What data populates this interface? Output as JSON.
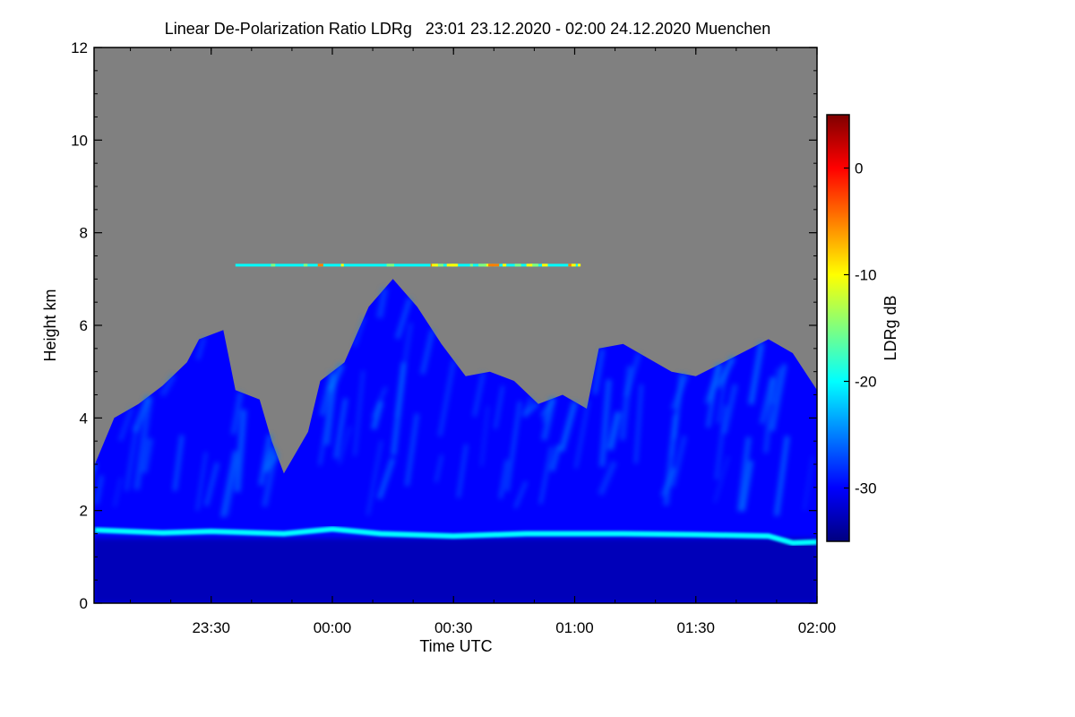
{
  "chart_data": {
    "type": "heatmap",
    "title": "Linear De-Polarization Ratio LDRg   23:01 23.12.2020 - 02:00 24.12.2020 Muenchen",
    "xlabel": "Time UTC",
    "ylabel": "Height km",
    "x_range_hours": [
      23.0167,
      26.0
    ],
    "y_range_km": [
      0,
      12
    ],
    "x_ticks": [
      {
        "value": 23.5,
        "label": "23:30"
      },
      {
        "value": 24.0,
        "label": "00:00"
      },
      {
        "value": 24.5,
        "label": "00:30"
      },
      {
        "value": 25.0,
        "label": "01:00"
      },
      {
        "value": 25.5,
        "label": "01:30"
      },
      {
        "value": 26.0,
        "label": "02:00"
      }
    ],
    "y_ticks": [
      {
        "value": 0,
        "label": "0"
      },
      {
        "value": 2,
        "label": "2"
      },
      {
        "value": 4,
        "label": "4"
      },
      {
        "value": 6,
        "label": "6"
      },
      {
        "value": 8,
        "label": "8"
      },
      {
        "value": 10,
        "label": "10"
      },
      {
        "value": 12,
        "label": "12"
      }
    ],
    "colorbar": {
      "label": "LDRg dB",
      "range": [
        -35,
        5
      ],
      "ticks": [
        {
          "value": 0,
          "label": "0"
        },
        {
          "value": -10,
          "label": "-10"
        },
        {
          "value": -20,
          "label": "-20"
        },
        {
          "value": -30,
          "label": "-30"
        }
      ],
      "colormap": [
        "#00007f",
        "#0000ff",
        "#007fff",
        "#00ffff",
        "#7fff7f",
        "#ffff00",
        "#ff7f00",
        "#ff0000",
        "#7f0000"
      ]
    },
    "no_data_color": "#808080",
    "features": {
      "boundary_layer_top_km": [
        [
          23.02,
          1.58
        ],
        [
          23.3,
          1.52
        ],
        [
          23.5,
          1.55
        ],
        [
          23.8,
          1.5
        ],
        [
          24.0,
          1.6
        ],
        [
          24.2,
          1.5
        ],
        [
          24.5,
          1.45
        ],
        [
          24.8,
          1.5
        ],
        [
          25.2,
          1.5
        ],
        [
          25.5,
          1.48
        ],
        [
          25.8,
          1.45
        ],
        [
          25.9,
          1.3
        ],
        [
          26.0,
          1.32
        ]
      ],
      "cloud_top_km": [
        [
          23.02,
          3.0
        ],
        [
          23.1,
          4.0
        ],
        [
          23.2,
          4.3
        ],
        [
          23.3,
          4.7
        ],
        [
          23.4,
          5.2
        ],
        [
          23.45,
          5.7
        ],
        [
          23.55,
          5.9
        ],
        [
          23.6,
          4.6
        ],
        [
          23.7,
          4.4
        ],
        [
          23.75,
          3.5
        ],
        [
          23.8,
          2.8
        ],
        [
          23.9,
          3.7
        ],
        [
          23.95,
          4.8
        ],
        [
          24.05,
          5.2
        ],
        [
          24.15,
          6.4
        ],
        [
          24.25,
          7.0
        ],
        [
          24.35,
          6.4
        ],
        [
          24.45,
          5.6
        ],
        [
          24.55,
          4.9
        ],
        [
          24.65,
          5.0
        ],
        [
          24.75,
          4.8
        ],
        [
          24.85,
          4.3
        ],
        [
          24.95,
          4.5
        ],
        [
          25.05,
          4.2
        ],
        [
          25.1,
          5.5
        ],
        [
          25.2,
          5.6
        ],
        [
          25.3,
          5.3
        ],
        [
          25.4,
          5.0
        ],
        [
          25.5,
          4.9
        ],
        [
          25.65,
          5.3
        ],
        [
          25.8,
          5.7
        ],
        [
          25.9,
          5.4
        ],
        [
          26.0,
          4.6
        ]
      ],
      "cirrus_layer_km": 7.3,
      "cirrus_time_range_hours": [
        23.6,
        25.02
      ]
    }
  }
}
